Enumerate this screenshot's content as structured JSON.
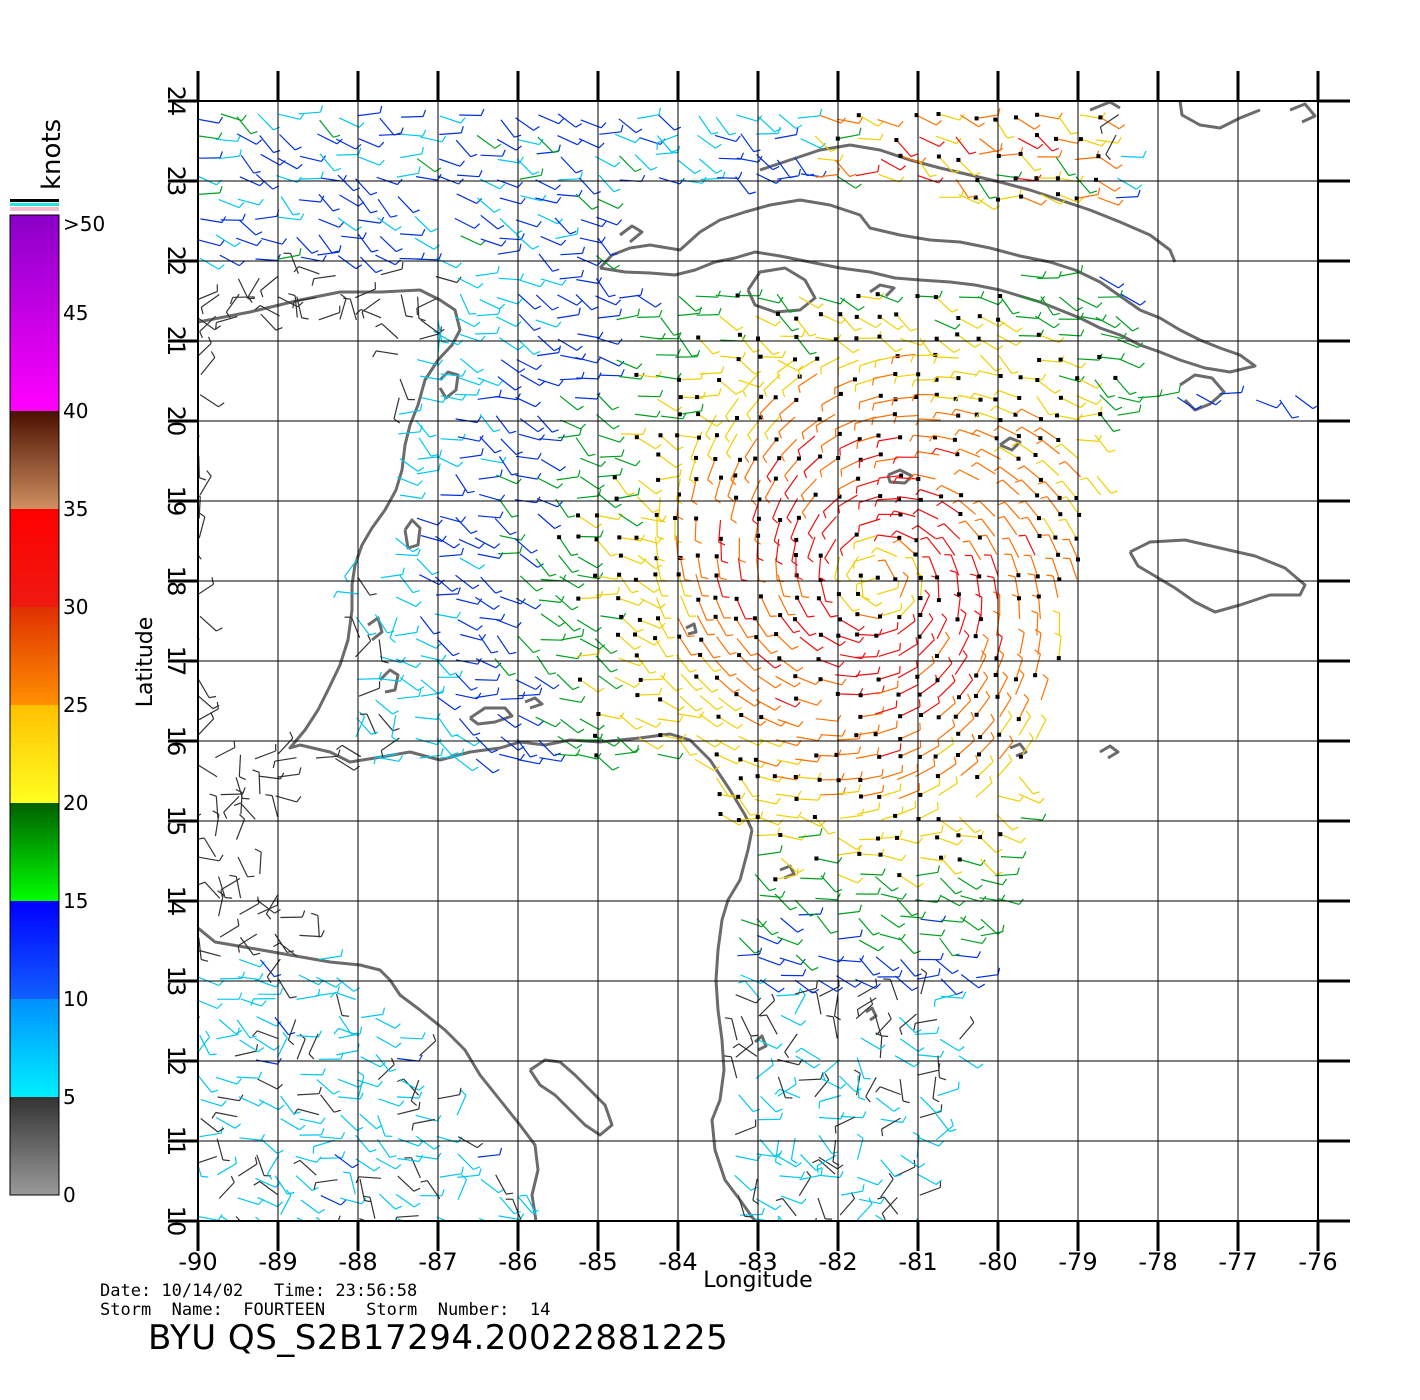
{
  "meta": {
    "date_line": "Date: 10/14/02   Time: 23:56:58",
    "storm_line": "Storm  Name:  FOURTEEN    Storm  Number:  14",
    "title": "BYU  QS_S2B17294.20022881225"
  },
  "axes": {
    "xlabel": "Longitude",
    "ylabel": "Latitude",
    "x_ticks": [
      "-90",
      "-89",
      "-88",
      "-87",
      "-86",
      "-85",
      "-84",
      "-83",
      "-82",
      "-81",
      "-80",
      "-79",
      "-78",
      "-77",
      "-76"
    ],
    "y_ticks": [
      "10",
      "11",
      "12",
      "13",
      "14",
      "15",
      "16",
      "17",
      "18",
      "19",
      "20",
      "21",
      "22",
      "23",
      "24"
    ],
    "lon_range": [
      -90,
      -76
    ],
    "lat_range": [
      10,
      24
    ]
  },
  "colorbar": {
    "unit": "knots",
    "labels": [
      ">50",
      "45",
      "40",
      "35",
      "30",
      "25",
      "20",
      "15",
      "10",
      "5",
      "0"
    ],
    "bands": [
      {
        "from": 0,
        "to": 5,
        "top": "#333333",
        "bottom": "#9a9a9a"
      },
      {
        "from": 5,
        "to": 10,
        "top": "#0090ff",
        "bottom": "#00f0ff"
      },
      {
        "from": 10,
        "to": 15,
        "top": "#0000ff",
        "bottom": "#1060ff"
      },
      {
        "from": 15,
        "to": 20,
        "top": "#006000",
        "bottom": "#00ff00"
      },
      {
        "from": 20,
        "to": 25,
        "top": "#ffc000",
        "bottom": "#ffff20"
      },
      {
        "from": 25,
        "to": 30,
        "top": "#e03000",
        "bottom": "#ff9000"
      },
      {
        "from": 30,
        "to": 35,
        "top": "#ff0000",
        "bottom": "#ee1a10"
      },
      {
        "from": 35,
        "to": 40,
        "top": "#4a1000",
        "bottom": "#d09060"
      },
      {
        "from": 40,
        "to": 50,
        "top": "#8a00c8",
        "bottom": "#ff00ff"
      },
      {
        "from": 50,
        "to": 60,
        "top": "#3000b0",
        "bottom": "#6a00c8"
      }
    ]
  },
  "map": {
    "coast_color": "#6b6b6b",
    "grid_color": "#000000"
  },
  "chart_data": {
    "type": "other",
    "title": "BYU  QS_S2B17294.20022881225",
    "xlabel": "Longitude",
    "ylabel": "Latitude",
    "xlim": [
      -90,
      -76
    ],
    "ylim": [
      10,
      24
    ],
    "colorbar_unit": "knots",
    "colorbar_range": [
      0,
      50
    ],
    "grid": true
  }
}
